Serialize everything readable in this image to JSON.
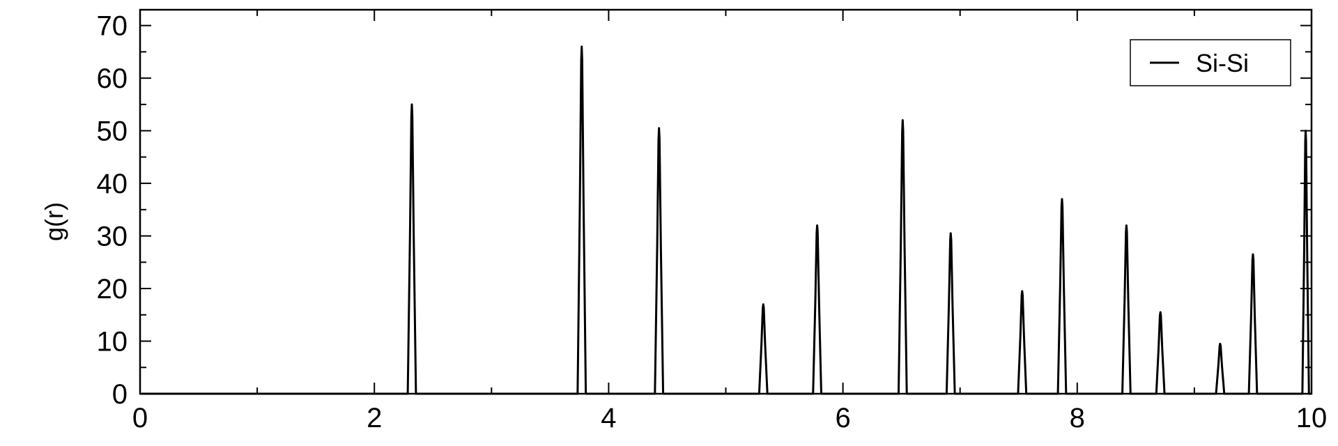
{
  "chart_data": {
    "type": "line",
    "xlabel": "",
    "ylabel": "g(r)",
    "xlim": [
      0,
      10
    ],
    "ylim": [
      0,
      73
    ],
    "xticks": [
      0,
      2,
      4,
      6,
      8,
      10
    ],
    "yticks": [
      0,
      10,
      20,
      30,
      40,
      50,
      60,
      70
    ],
    "grid": false,
    "legend_position": "top-right",
    "series": [
      {
        "name": "Si-Si",
        "color": "#000000",
        "peaks": [
          {
            "r": 2.32,
            "height": 55
          },
          {
            "r": 3.77,
            "height": 66
          },
          {
            "r": 4.43,
            "height": 50.5
          },
          {
            "r": 5.32,
            "height": 17
          },
          {
            "r": 5.78,
            "height": 32
          },
          {
            "r": 6.51,
            "height": 52
          },
          {
            "r": 6.92,
            "height": 30.5
          },
          {
            "r": 7.53,
            "height": 19.5
          },
          {
            "r": 7.87,
            "height": 37
          },
          {
            "r": 8.42,
            "height": 32
          },
          {
            "r": 8.71,
            "height": 15.5
          },
          {
            "r": 9.22,
            "height": 9.5
          },
          {
            "r": 9.5,
            "height": 26.5
          },
          {
            "r": 9.95,
            "height": 50
          }
        ]
      }
    ]
  }
}
